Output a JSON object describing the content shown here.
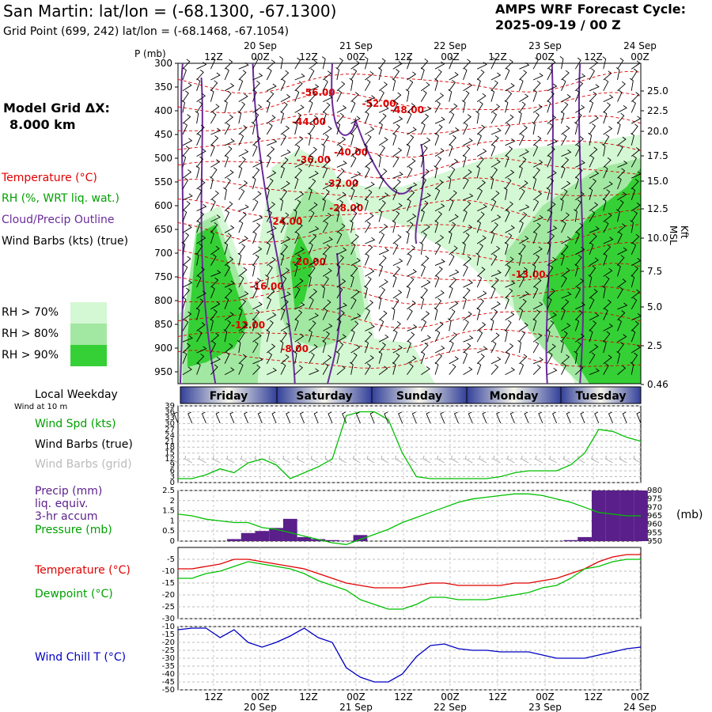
{
  "header": {
    "title": "San Martin:  lat/lon = (-68.1300, -67.1300)",
    "subtitle": "Grid Point (699, 242) lat/lon = (-68.1468, -67.1054)",
    "forecast_line1": "AMPS WRF Forecast Cycle:",
    "forecast_line2": "2025-09-19 / 00  Z",
    "model_grid": "Model Grid ΔX:",
    "model_grid_value": "8.000 km"
  },
  "legend": {
    "temperature": "Temperature (°C)",
    "rh": "RH (%, WRT liq. wat.)",
    "cloud": "Cloud/Precip Outline",
    "wind": "Wind Barbs (kts) (true)",
    "rh70": "RH > 70%",
    "rh80": "RH > 80%",
    "rh90": "RH > 90%",
    "local_weekday": "Local Weekday",
    "wind_10m": "Wind at 10 m",
    "wind_spd": "Wind Spd (kts)",
    "wind_barbs_true": "Wind Barbs (true)",
    "wind_barbs_grid": "Wind Barbs (grid)",
    "precip1": "Precip (mm)",
    "precip2": "liq. equiv.",
    "precip3": "3-hr accum",
    "pressure": "Pressure (mb)",
    "pressure_unit": "(mb)",
    "temperature2": "Temperature (°C)",
    "dewpoint": "Dewpoint (°C)",
    "windchill": "Wind Chill T (°C)",
    "p_axis": "P (mb)",
    "kft": "Kft MSL"
  },
  "colors": {
    "rh70": "#d4f7d4",
    "rh80": "#a2e8a2",
    "rh90": "#35d035",
    "temp": "#e00000",
    "dew": "#00c000",
    "wind": "#00c000",
    "cloud": "#6a2c9a",
    "precip": "#5a1f8a",
    "chill": "#0000c0",
    "grey": "#999999"
  },
  "time_axis": {
    "top_labels": [
      "12Z",
      "00Z",
      "12Z",
      "00Z",
      "12Z",
      "00Z",
      "12Z",
      "00Z",
      "12Z",
      "00Z"
    ],
    "date_labels": [
      "20 Sep",
      "21 Sep",
      "22 Sep",
      "23 Sep",
      "24 Sep"
    ],
    "weekdays": [
      "Friday",
      "Saturday",
      "Sunday",
      "Monday",
      "Tuesday"
    ]
  },
  "chart_data": [
    {
      "type": "heatmap",
      "name_hint": "time-height cross section",
      "pressure_ticks": [
        300,
        350,
        400,
        450,
        500,
        550,
        600,
        650,
        700,
        750,
        800,
        850,
        900,
        950
      ],
      "height_ticks": [
        "25.0",
        "22.5",
        "20.0",
        "17.5",
        "15.0",
        "12.5",
        "10.0",
        "7.5",
        "5.0",
        "2.5",
        "0.46"
      ],
      "temperature_labels": [
        {
          "text": "-56.00",
          "t": 30,
          "p": 368
        },
        {
          "text": "-52.00",
          "t": 43,
          "p": 392
        },
        {
          "text": "-48.00",
          "t": 49,
          "p": 405
        },
        {
          "text": "-44.00",
          "t": 28,
          "p": 430
        },
        {
          "text": "-40.00",
          "t": 37,
          "p": 494
        },
        {
          "text": "-36.00",
          "t": 29,
          "p": 510
        },
        {
          "text": "-32.00",
          "t": 35,
          "p": 560
        },
        {
          "text": "-28.00",
          "t": 36,
          "p": 612
        },
        {
          "text": "-24.00",
          "t": 23,
          "p": 640
        },
        {
          "text": "-20.00",
          "t": 28,
          "p": 725
        },
        {
          "text": "-16.00",
          "t": 19,
          "p": 777
        },
        {
          "text": "-13.00",
          "t": 75,
          "p": 752
        },
        {
          "text": "-12.00",
          "t": 15,
          "p": 858
        },
        {
          "text": "-8.00",
          "t": 25,
          "p": 908
        }
      ]
    },
    {
      "type": "line",
      "name_hint": "surface wind speed",
      "ylim": [
        0,
        39
      ],
      "yticks": [
        0,
        3,
        6,
        9,
        12,
        15,
        18,
        21,
        24,
        27,
        30,
        33,
        36,
        39
      ],
      "x": [
        0,
        3,
        6,
        9,
        12,
        15,
        18,
        21,
        24,
        27,
        30,
        33,
        36,
        39,
        42,
        45,
        48,
        51,
        54,
        57,
        60,
        63,
        66,
        69,
        72,
        75,
        78,
        81,
        84,
        87,
        90,
        93,
        96,
        99
      ],
      "values": [
        2,
        2,
        4,
        7,
        5,
        10,
        12,
        9,
        2,
        5,
        8,
        12,
        34,
        36,
        36,
        32,
        15,
        3,
        2,
        2,
        2,
        2,
        2,
        3,
        5,
        6,
        6,
        6,
        9,
        15,
        27,
        26,
        23,
        21
      ]
    },
    {
      "type": "bar",
      "name_hint": "precip and pressure",
      "ylim": [
        0,
        2.5
      ],
      "yticks": [
        0.0,
        0.5,
        1.0,
        1.5,
        2.0,
        2.5
      ],
      "pressure_ticks": [
        950,
        955,
        960,
        965,
        970,
        975,
        980
      ],
      "x": [
        0,
        3,
        6,
        9,
        12,
        15,
        18,
        21,
        24,
        27,
        30,
        33,
        36,
        39,
        42,
        45,
        48,
        51,
        54,
        57,
        60,
        63,
        66,
        69,
        72,
        75,
        78,
        81,
        84,
        87,
        90,
        93,
        96,
        99
      ],
      "precip": [
        0,
        0,
        0,
        0,
        0.1,
        0.4,
        0.5,
        0.65,
        1.1,
        0.2,
        0.1,
        0.05,
        0.02,
        0.3,
        0,
        0,
        0,
        0,
        0,
        0,
        0,
        0,
        0,
        0,
        0,
        0,
        0,
        0,
        0.05,
        0.2,
        2.5,
        2.5,
        2.5,
        2.5
      ],
      "pressure": [
        966,
        965,
        963,
        962,
        961,
        961,
        958,
        957,
        955,
        953,
        951,
        949,
        948,
        951,
        954,
        957,
        961,
        964,
        967,
        970,
        973,
        975,
        976,
        977,
        978,
        978,
        977,
        975,
        973,
        970,
        967,
        966,
        965,
        965
      ]
    },
    {
      "type": "line",
      "name_hint": "temperature and dewpoint",
      "ylim": [
        -30,
        0
      ],
      "yticks": [
        -5,
        -10,
        -15,
        -20,
        -25,
        -30
      ],
      "x": [
        0,
        3,
        6,
        9,
        12,
        15,
        18,
        21,
        24,
        27,
        30,
        33,
        36,
        39,
        42,
        45,
        48,
        51,
        54,
        57,
        60,
        63,
        66,
        69,
        72,
        75,
        78,
        81,
        84,
        87,
        90,
        93,
        96,
        99
      ],
      "series": [
        {
          "name": "Temperature",
          "values": [
            -9,
            -9,
            -8,
            -7,
            -5,
            -5,
            -6,
            -7,
            -8,
            -9,
            -11,
            -13,
            -15,
            -16,
            -17,
            -17,
            -17,
            -16,
            -15,
            -15,
            -16,
            -16,
            -16,
            -16,
            -15,
            -15,
            -14,
            -13,
            -11,
            -9,
            -6,
            -4,
            -3,
            -3
          ]
        },
        {
          "name": "Dewpoint",
          "values": [
            -13,
            -13,
            -11,
            -10,
            -8,
            -6,
            -7,
            -8,
            -9,
            -11,
            -14,
            -16,
            -18,
            -22,
            -24,
            -26,
            -26,
            -24,
            -21,
            -21,
            -22,
            -22,
            -22,
            -21,
            -20,
            -19,
            -17,
            -16,
            -13,
            -9,
            -8,
            -6,
            -5,
            -5
          ]
        }
      ]
    },
    {
      "type": "line",
      "name_hint": "wind chill",
      "ylim": [
        -50,
        -10
      ],
      "yticks": [
        -10,
        -15,
        -20,
        -25,
        -30,
        -35,
        -40,
        -45,
        -50
      ],
      "x": [
        0,
        3,
        6,
        9,
        12,
        15,
        18,
        21,
        24,
        27,
        30,
        33,
        36,
        39,
        42,
        45,
        48,
        51,
        54,
        57,
        60,
        63,
        66,
        69,
        72,
        75,
        78,
        81,
        84,
        87,
        90,
        93,
        96,
        99
      ],
      "values": [
        -12,
        -11,
        -11,
        -17,
        -12,
        -20,
        -23,
        -20,
        -16,
        -11,
        -17,
        -20,
        -36,
        -42,
        -45,
        -45,
        -40,
        -29,
        -22,
        -21,
        -24,
        -25,
        -25,
        -26,
        -26,
        -26,
        -28,
        -30,
        -30,
        -30,
        -28,
        -26,
        -24,
        -23
      ]
    }
  ]
}
